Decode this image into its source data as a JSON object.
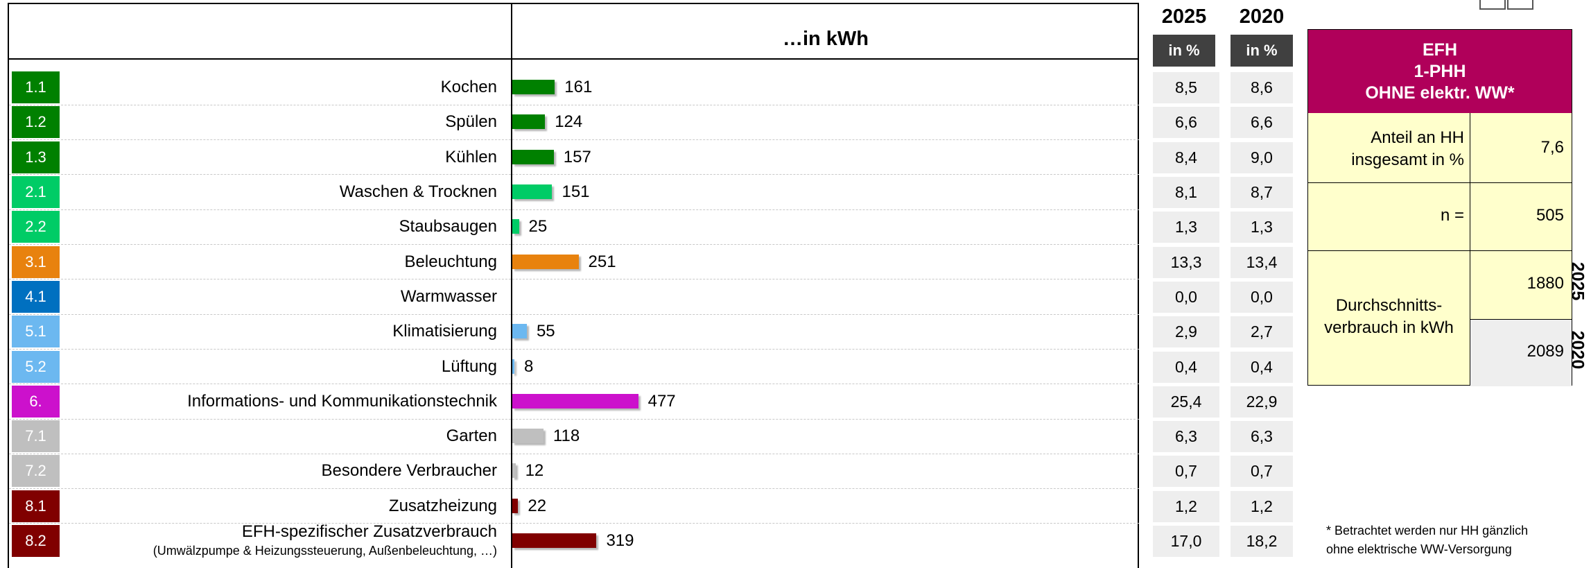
{
  "chart_data": {
    "type": "bar",
    "unit_header": "…in kWh",
    "categories": [
      {
        "code": "1.1",
        "label": "Kochen",
        "color": "#008000"
      },
      {
        "code": "1.2",
        "label": "Spülen",
        "color": "#008000"
      },
      {
        "code": "1.3",
        "label": "Kühlen",
        "color": "#008000"
      },
      {
        "code": "2.1",
        "label": "Waschen & Trocknen",
        "color": "#00cc66"
      },
      {
        "code": "2.2",
        "label": "Staubsaugen",
        "color": "#00cc66"
      },
      {
        "code": "3.1",
        "label": "Beleuchtung",
        "color": "#e8820e"
      },
      {
        "code": "4.1",
        "label": "Warmwasser",
        "color": "#0070c0"
      },
      {
        "code": "5.1",
        "label": "Klimatisierung",
        "color": "#6cb8f0"
      },
      {
        "code": "5.2",
        "label": "Lüftung",
        "color": "#6cb8f0"
      },
      {
        "code": "6.",
        "label": "Informations- und Kommunikationstechnik",
        "color": "#cc11cc"
      },
      {
        "code": "7.1",
        "label": "Garten",
        "color": "#bfbfbf"
      },
      {
        "code": "7.2",
        "label": "Besondere Verbraucher",
        "color": "#bfbfbf"
      },
      {
        "code": "8.1",
        "label": "Zusatzheizung",
        "color": "#800000"
      },
      {
        "code": "8.2",
        "label": "EFH-spezifischer Zusatzverbrauch",
        "sublabel": "(Umwälzpumpe & Heizungssteuerung, Außenbeleuchtung, …)",
        "color": "#800000"
      }
    ],
    "values": [
      161,
      124,
      157,
      151,
      25,
      251,
      null,
      55,
      8,
      477,
      118,
      12,
      22,
      319
    ],
    "value_labels": [
      "161",
      "124",
      "157",
      "151",
      "25",
      "251",
      "",
      "55",
      "8",
      "477",
      "118",
      "12",
      "22",
      "319"
    ],
    "value_axis_max": 2000,
    "percent_table": {
      "unit": "in %",
      "columns": [
        {
          "year": "2025",
          "values": [
            "8,5",
            "6,6",
            "8,4",
            "8,1",
            "1,3",
            "13,3",
            "0,0",
            "2,9",
            "0,4",
            "25,4",
            "6,3",
            "0,7",
            "1,2",
            "17,0"
          ]
        },
        {
          "year": "2020",
          "values": [
            "8,6",
            "6,6",
            "9,0",
            "8,7",
            "1,3",
            "13,4",
            "0,0",
            "2,7",
            "0,4",
            "22,9",
            "6,3",
            "0,7",
            "1,2",
            "18,2"
          ]
        }
      ]
    }
  },
  "info_box": {
    "title_lines": [
      "EFH",
      "1-PHH",
      "OHNE elektr. WW*"
    ],
    "share_label_lines": [
      "Anteil an HH",
      "insgesamt in %"
    ],
    "share_value": "7,6",
    "n_label": "n =",
    "n_value": "505",
    "avg_label_lines": [
      "Durchschnitts-",
      "verbrauch in kWh"
    ],
    "avg_2025": "1880",
    "avg_2020": "2089",
    "year_2025": "2025",
    "year_2020": "2020",
    "head_color": "#b0005a",
    "fill_color": "#ffffcc"
  },
  "footnote_lines": [
    "* Betrachtet werden nur HH gänzlich",
    "ohne elektrische WW-Versorgung"
  ]
}
